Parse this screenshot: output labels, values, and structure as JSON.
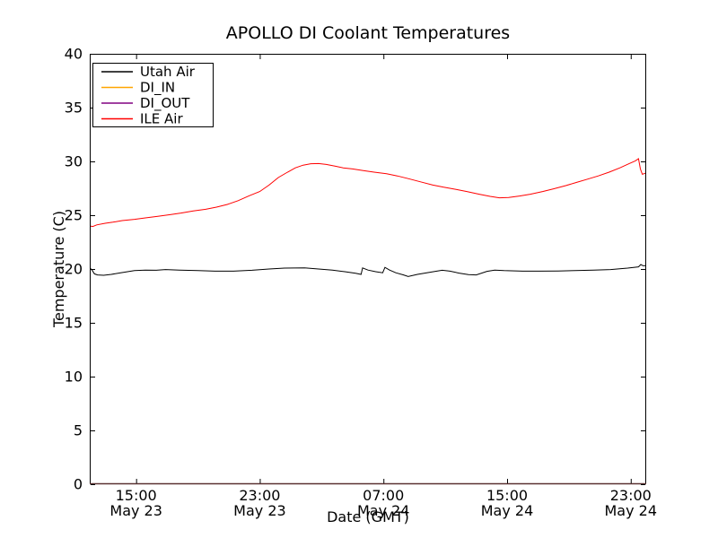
{
  "figure": {
    "background": "#ffffff"
  },
  "chart_data": {
    "type": "line",
    "title": "APOLLO DI Coolant Temperatures",
    "xlabel": "Date (GMT)",
    "ylabel": "Temperature (C)",
    "ylim": [
      0,
      40
    ],
    "yticks": [
      0,
      5,
      10,
      15,
      20,
      25,
      30,
      35,
      40
    ],
    "xlim_hours": [
      0,
      36
    ],
    "x_hours_origin": "May 23 12:00 GMT",
    "grid": false,
    "legend_position": "upper-left",
    "xticks": [
      {
        "hours": 3,
        "time": "15:00",
        "date": "May 23"
      },
      {
        "hours": 11,
        "time": "23:00",
        "date": "May 23"
      },
      {
        "hours": 19,
        "time": "07:00",
        "date": "May 24"
      },
      {
        "hours": 27,
        "time": "15:00",
        "date": "May 24"
      },
      {
        "hours": 35,
        "time": "23:00",
        "date": "May 24"
      }
    ],
    "series": [
      {
        "name": "Utah Air",
        "color": "#000000",
        "points": [
          [
            0.0,
            20.1
          ],
          [
            0.15,
            19.9
          ],
          [
            0.3,
            19.55
          ],
          [
            0.5,
            19.45
          ],
          [
            0.9,
            19.42
          ],
          [
            1.4,
            19.5
          ],
          [
            2.0,
            19.65
          ],
          [
            2.9,
            19.85
          ],
          [
            3.6,
            19.9
          ],
          [
            4.3,
            19.88
          ],
          [
            4.9,
            19.95
          ],
          [
            5.8,
            19.9
          ],
          [
            7.0,
            19.85
          ],
          [
            8.1,
            19.8
          ],
          [
            9.3,
            19.8
          ],
          [
            10.5,
            19.88
          ],
          [
            11.6,
            20.0
          ],
          [
            12.6,
            20.08
          ],
          [
            13.9,
            20.1
          ],
          [
            14.8,
            20.0
          ],
          [
            15.7,
            19.9
          ],
          [
            16.5,
            19.75
          ],
          [
            17.2,
            19.6
          ],
          [
            17.55,
            19.5
          ],
          [
            17.65,
            20.1
          ],
          [
            18.0,
            19.9
          ],
          [
            18.5,
            19.75
          ],
          [
            18.95,
            19.65
          ],
          [
            19.1,
            20.15
          ],
          [
            19.4,
            19.9
          ],
          [
            19.8,
            19.65
          ],
          [
            20.3,
            19.45
          ],
          [
            20.6,
            19.3
          ],
          [
            21.2,
            19.5
          ],
          [
            22.1,
            19.72
          ],
          [
            22.8,
            19.88
          ],
          [
            23.3,
            19.8
          ],
          [
            23.9,
            19.62
          ],
          [
            24.5,
            19.48
          ],
          [
            25.0,
            19.45
          ],
          [
            25.7,
            19.78
          ],
          [
            26.2,
            19.9
          ],
          [
            26.8,
            19.85
          ],
          [
            28.0,
            19.8
          ],
          [
            29.1,
            19.8
          ],
          [
            30.3,
            19.82
          ],
          [
            31.4,
            19.85
          ],
          [
            32.6,
            19.9
          ],
          [
            33.7,
            19.95
          ],
          [
            34.8,
            20.08
          ],
          [
            35.5,
            20.2
          ],
          [
            35.65,
            20.42
          ],
          [
            35.8,
            20.3
          ],
          [
            35.95,
            20.32
          ]
        ]
      },
      {
        "name": "DI_IN",
        "color": "#ffa500",
        "points": [
          [
            0.0,
            0.0
          ],
          [
            35.95,
            0.0
          ]
        ]
      },
      {
        "name": "DI_OUT",
        "color": "#800080",
        "points": [
          [
            0.0,
            0.0
          ],
          [
            35.95,
            0.0
          ]
        ]
      },
      {
        "name": "ILE Air",
        "color": "#ff0000",
        "points": [
          [
            0.0,
            24.0
          ],
          [
            0.2,
            23.95
          ],
          [
            0.45,
            24.1
          ],
          [
            1.0,
            24.25
          ],
          [
            1.5,
            24.35
          ],
          [
            2.1,
            24.5
          ],
          [
            2.9,
            24.62
          ],
          [
            3.6,
            24.75
          ],
          [
            4.4,
            24.9
          ],
          [
            5.2,
            25.05
          ],
          [
            5.9,
            25.2
          ],
          [
            6.7,
            25.4
          ],
          [
            7.5,
            25.55
          ],
          [
            8.2,
            25.75
          ],
          [
            8.9,
            26.0
          ],
          [
            9.6,
            26.35
          ],
          [
            10.3,
            26.8
          ],
          [
            11.0,
            27.2
          ],
          [
            11.6,
            27.8
          ],
          [
            12.2,
            28.5
          ],
          [
            12.8,
            29.0
          ],
          [
            13.3,
            29.4
          ],
          [
            13.8,
            29.65
          ],
          [
            14.3,
            29.78
          ],
          [
            14.8,
            29.8
          ],
          [
            15.3,
            29.72
          ],
          [
            15.9,
            29.55
          ],
          [
            16.4,
            29.4
          ],
          [
            17.0,
            29.3
          ],
          [
            17.7,
            29.15
          ],
          [
            18.4,
            29.0
          ],
          [
            19.2,
            28.85
          ],
          [
            19.9,
            28.65
          ],
          [
            20.6,
            28.4
          ],
          [
            21.4,
            28.1
          ],
          [
            22.2,
            27.8
          ],
          [
            22.9,
            27.6
          ],
          [
            23.7,
            27.4
          ],
          [
            24.4,
            27.2
          ],
          [
            25.2,
            26.95
          ],
          [
            25.9,
            26.75
          ],
          [
            26.5,
            26.62
          ],
          [
            27.1,
            26.65
          ],
          [
            27.8,
            26.78
          ],
          [
            28.5,
            26.95
          ],
          [
            29.3,
            27.2
          ],
          [
            30.0,
            27.45
          ],
          [
            30.8,
            27.75
          ],
          [
            31.5,
            28.05
          ],
          [
            32.2,
            28.35
          ],
          [
            32.9,
            28.65
          ],
          [
            33.6,
            29.0
          ],
          [
            34.3,
            29.4
          ],
          [
            34.9,
            29.8
          ],
          [
            35.3,
            30.05
          ],
          [
            35.5,
            30.25
          ],
          [
            35.62,
            29.3
          ],
          [
            35.75,
            28.8
          ],
          [
            35.95,
            28.9
          ]
        ]
      }
    ]
  }
}
